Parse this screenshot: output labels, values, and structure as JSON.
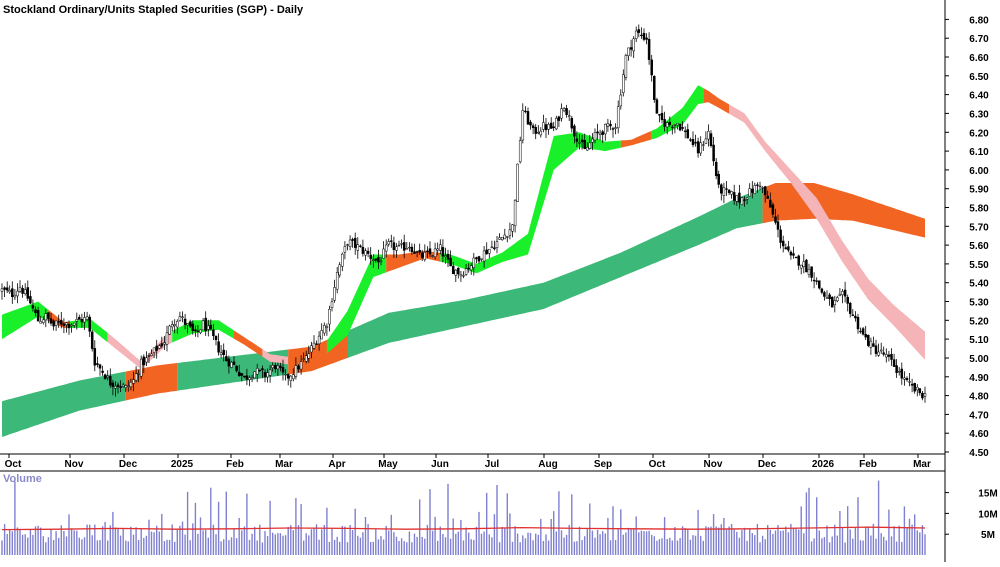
{
  "title": "Stockland Ordinary/Units Stapled Securities (SGP) - Daily",
  "volume_label": "Volume",
  "colors": {
    "long_band_up": "#3cb878",
    "long_band_down": "#f26422",
    "short_band_up": "#19f02a",
    "short_band_down": "#f26422",
    "short_band_pink": "#f5b5b8",
    "volume_bar": "#8080d0",
    "volume_avg": "#e03030",
    "axis": "#000000",
    "volume_label": "#8a8ac8"
  },
  "chart_data": [
    {
      "type": "candlestick",
      "title": "Stockland Ordinary/Units Stapled Securities (SGP) - Daily",
      "y_axis_side": "right",
      "ylim": [
        4.5,
        6.85
      ],
      "yticks": [
        "6.80",
        "6.70",
        "6.60",
        "6.50",
        "6.40",
        "6.30",
        "6.20",
        "6.10",
        "6.00",
        "5.90",
        "5.80",
        "5.70",
        "5.60",
        "5.50",
        "5.40",
        "5.30",
        "5.20",
        "5.10",
        "5.00",
        "4.90",
        "4.80",
        "4.70",
        "4.60",
        "4.50"
      ],
      "xticks": [
        "Oct",
        "Nov",
        "Dec",
        "2025",
        "Feb",
        "Mar",
        "Apr",
        "May",
        "Jun",
        "Jul",
        "Aug",
        "Sep",
        "Oct",
        "Nov",
        "Dec",
        "2026",
        "Feb",
        "Mar"
      ],
      "close_series": {
        "name": "",
        "t": [
          0,
          4,
          7,
          10,
          14,
          17,
          20,
          23,
          26,
          30,
          33,
          36,
          39,
          42,
          45,
          48,
          51,
          54,
          57,
          60,
          63,
          66,
          69,
          72,
          75,
          78,
          81,
          84,
          87,
          90,
          94,
          98,
          102,
          106,
          110,
          114,
          118,
          122,
          126,
          130,
          134,
          138,
          142,
          146,
          150,
          154,
          158,
          162,
          166,
          170,
          174,
          178,
          182,
          186,
          190,
          194,
          198,
          202,
          206,
          210,
          214,
          218,
          222,
          226,
          230,
          234,
          238,
          242,
          246,
          250,
          254,
          258,
          262,
          266,
          270,
          274,
          278,
          282,
          286,
          290,
          294,
          298,
          302,
          306,
          310,
          314,
          318,
          322,
          326,
          330,
          334,
          338,
          342,
          346,
          350,
          354,
          358
        ],
        "close": [
          5.36,
          5.34,
          5.38,
          5.32,
          5.2,
          5.22,
          5.17,
          5.19,
          5.18,
          5.2,
          5.21,
          4.98,
          4.93,
          4.87,
          4.86,
          4.84,
          4.88,
          4.97,
          5.0,
          5.05,
          5.09,
          5.19,
          5.22,
          5.17,
          5.12,
          5.18,
          5.13,
          5.05,
          4.99,
          4.96,
          4.89,
          4.93,
          4.91,
          4.96,
          4.89,
          4.94,
          5.0,
          5.1,
          5.19,
          5.45,
          5.62,
          5.59,
          5.55,
          5.51,
          5.6,
          5.58,
          5.6,
          5.54,
          5.55,
          5.58,
          5.48,
          5.45,
          5.5,
          5.55,
          5.59,
          5.64,
          5.7,
          6.32,
          6.2,
          6.23,
          6.22,
          6.35,
          6.2,
          6.1,
          6.18,
          6.22,
          6.24,
          6.6,
          6.73,
          6.7,
          6.28,
          6.24,
          6.25,
          6.18,
          6.1,
          6.2,
          5.9,
          5.87,
          5.84,
          5.88,
          5.93,
          5.8,
          5.63,
          5.53,
          5.51,
          5.45,
          5.35,
          5.28,
          5.33,
          5.23,
          5.12,
          5.05,
          5.02,
          4.96,
          4.88,
          4.83,
          4.8
        ]
      },
      "bands": [
        {
          "name": "",
          "t": [
            0,
            30,
            60,
            90,
            120,
            150,
            180,
            210,
            240,
            270,
            285,
            300,
            315,
            330,
            358
          ],
          "lower": [
            4.58,
            4.72,
            4.81,
            4.87,
            4.93,
            5.08,
            5.17,
            5.26,
            5.43,
            5.6,
            5.69,
            5.73,
            5.74,
            5.73,
            5.64
          ],
          "upper": [
            4.77,
            4.88,
            4.96,
            5.01,
            5.06,
            5.24,
            5.31,
            5.4,
            5.56,
            5.75,
            5.85,
            5.93,
            5.93,
            5.87,
            5.74
          ],
          "segments": [
            {
              "t0": 0,
              "t1": 48,
              "color": "up"
            },
            {
              "t0": 48,
              "t1": 68,
              "color": "down"
            },
            {
              "t0": 68,
              "t1": 111,
              "color": "up"
            },
            {
              "t0": 111,
              "t1": 134,
              "color": "down"
            },
            {
              "t0": 134,
              "t1": 295,
              "color": "up"
            },
            {
              "t0": 295,
              "t1": 358,
              "color": "down"
            }
          ]
        },
        {
          "name": "",
          "t": [
            0,
            14,
            24,
            34,
            44,
            54,
            64,
            74,
            84,
            94,
            104,
            114,
            124,
            134,
            144,
            154,
            164,
            174,
            184,
            194,
            204,
            214,
            224,
            234,
            244,
            254,
            264,
            270,
            274,
            278,
            288,
            296,
            306,
            316,
            326,
            336,
            346,
            358
          ],
          "lower": [
            5.1,
            5.22,
            5.16,
            5.16,
            5.05,
            4.94,
            5.07,
            5.13,
            5.15,
            5.07,
            4.98,
            4.96,
            5.0,
            5.12,
            5.43,
            5.48,
            5.53,
            5.5,
            5.45,
            5.51,
            5.55,
            6.0,
            6.12,
            6.1,
            6.13,
            6.17,
            6.24,
            6.35,
            6.36,
            6.33,
            6.25,
            6.1,
            5.93,
            5.74,
            5.51,
            5.31,
            5.17,
            4.99
          ],
          "upper": [
            5.23,
            5.3,
            5.19,
            5.21,
            5.1,
            4.98,
            5.13,
            5.2,
            5.2,
            5.11,
            5.02,
            5.0,
            5.05,
            5.25,
            5.55,
            5.55,
            5.57,
            5.55,
            5.5,
            5.56,
            5.66,
            6.18,
            6.2,
            6.15,
            6.16,
            6.22,
            6.33,
            6.45,
            6.42,
            6.38,
            6.3,
            6.15,
            6.0,
            5.85,
            5.62,
            5.42,
            5.28,
            5.14
          ],
          "segments": [
            {
              "t0": 0,
              "t1": 18,
              "color": "up"
            },
            {
              "t0": 18,
              "t1": 26,
              "color": "down"
            },
            {
              "t0": 26,
              "t1": 41,
              "color": "up"
            },
            {
              "t0": 41,
              "t1": 66,
              "color": "pink"
            },
            {
              "t0": 66,
              "t1": 90,
              "color": "up"
            },
            {
              "t0": 90,
              "t1": 101,
              "color": "down"
            },
            {
              "t0": 101,
              "t1": 111,
              "color": "pink"
            },
            {
              "t0": 111,
              "t1": 126,
              "color": "down"
            },
            {
              "t0": 126,
              "t1": 149,
              "color": "up"
            },
            {
              "t0": 149,
              "t1": 162,
              "color": "down"
            },
            {
              "t0": 162,
              "t1": 170,
              "color": "down"
            },
            {
              "t0": 170,
              "t1": 240,
              "color": "up"
            },
            {
              "t0": 240,
              "t1": 252,
              "color": "down"
            },
            {
              "t0": 252,
              "t1": 272,
              "color": "up"
            },
            {
              "t0": 272,
              "t1": 282,
              "color": "down"
            },
            {
              "t0": 282,
              "t1": 358,
              "color": "pink"
            }
          ]
        }
      ]
    },
    {
      "type": "bar",
      "title": "Volume",
      "ylim": [
        0,
        19
      ],
      "yticks": [
        "15M",
        "10M",
        "5M"
      ],
      "average_level": 6.3,
      "average_trend": [
        6.1,
        6.2,
        6.4,
        6.2,
        6.3,
        6.5,
        6.4,
        6.2,
        6.3,
        6.6,
        6.4,
        6.3,
        6.2,
        6.3,
        6.5,
        6.7,
        6.5
      ]
    }
  ]
}
